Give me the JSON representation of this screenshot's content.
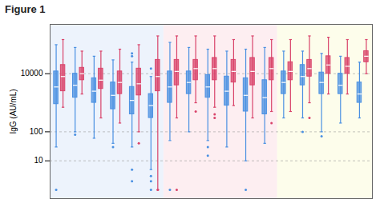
{
  "chart_data": {
    "type": "box",
    "title": "Figure 1",
    "y_label": "IgG (AU/mL)",
    "log": "y",
    "grid": true,
    "tick_labels": "y",
    "categories": [
      null,
      null,
      null,
      null,
      null,
      null,
      null,
      null,
      null,
      null,
      null,
      null,
      null,
      null,
      null,
      null,
      null
    ],
    "ylim": [
      0.5,
      500000
    ],
    "yticks": [
      10,
      100,
      10000
    ],
    "bands": [
      {
        "from": 0,
        "to": 5,
        "color": "#edf3fc"
      },
      {
        "from": 6,
        "to": 11,
        "color": "#fdeef1"
      },
      {
        "from": 12,
        "to": 16,
        "color": "#fdfdeb"
      }
    ],
    "series": [
      {
        "color": "#4a90e2",
        "values": [
          {
            "min": 30,
            "q1": 900,
            "median": 3500,
            "q3": 12000,
            "max": 100000,
            "outliers": [
              1
            ]
          },
          {
            "min": 100,
            "q1": 1500,
            "median": 4000,
            "q3": 10000,
            "max": 80000,
            "outliers": [
              80
            ]
          },
          {
            "min": 60,
            "q1": 1000,
            "median": 2500,
            "q3": 7000,
            "max": 40000,
            "outliers": []
          },
          {
            "min": 40,
            "q1": 600,
            "median": 1800,
            "q3": 5000,
            "max": 30000,
            "outliers": [
              30
            ]
          },
          {
            "min": 30,
            "q1": 400,
            "median": 1200,
            "q3": 3500,
            "max": 25000,
            "outliers": [
              2,
              5,
              40000,
              50000
            ]
          },
          {
            "min": 5,
            "q1": 300,
            "median": 800,
            "q3": 2000,
            "max": 8000,
            "outliers": [
              1,
              2,
              3,
              15000
            ]
          },
          {
            "min": 50,
            "q1": 1000,
            "median": 3500,
            "q3": 12000,
            "max": 120000,
            "outliers": [
              1
            ]
          },
          {
            "min": 100,
            "q1": 2000,
            "median": 5000,
            "q3": 12000,
            "max": 80000,
            "outliers": []
          },
          {
            "min": 50,
            "q1": 1500,
            "median": 3500,
            "q3": 9000,
            "max": 70000,
            "outliers": [
              15,
              30
            ]
          },
          {
            "min": 30,
            "q1": 800,
            "median": 2500,
            "q3": 8000,
            "max": 60000,
            "outliers": []
          },
          {
            "min": 10,
            "q1": 500,
            "median": 1800,
            "q3": 7000,
            "max": 70000,
            "outliers": [
              1
            ]
          },
          {
            "min": 40,
            "q1": 400,
            "median": 1500,
            "q3": 6000,
            "max": 80000,
            "outliers": []
          },
          {
            "min": 300,
            "q1": 2000,
            "median": 5000,
            "q3": 12000,
            "max": 60000,
            "outliers": []
          },
          {
            "min": 300,
            "q1": 4000,
            "median": 8000,
            "q3": 20000,
            "max": 60000,
            "outliers": [
              100
            ]
          },
          {
            "min": 100,
            "q1": 2000,
            "median": 5000,
            "q3": 11000,
            "max": 50000,
            "outliers": [
              70
            ]
          },
          {
            "min": 200,
            "q1": 2000,
            "median": 4000,
            "q3": 10000,
            "max": 40000,
            "outliers": []
          },
          {
            "min": 300,
            "q1": 1000,
            "median": 2000,
            "q3": 5000,
            "max": 25000,
            "outliers": []
          }
        ]
      },
      {
        "color": "#d9436a",
        "values": [
          {
            "min": 700,
            "q1": 2500,
            "median": 8000,
            "q3": 20000,
            "max": 150000,
            "outliers": []
          },
          {
            "min": 2000,
            "q1": 6000,
            "median": 10000,
            "q3": 16000,
            "max": 60000,
            "outliers": []
          },
          {
            "min": 300,
            "q1": 3000,
            "median": 6000,
            "q3": 15000,
            "max": 60000,
            "outliers": []
          },
          {
            "min": 200,
            "q1": 2000,
            "median": 5000,
            "q3": 12000,
            "max": 70000,
            "outliers": []
          },
          {
            "min": 100,
            "q1": 1800,
            "median": 4500,
            "q3": 15000,
            "max": 100000,
            "outliers": [
              40
            ]
          },
          {
            "min": 1,
            "q1": 2500,
            "median": 8000,
            "q3": 30000,
            "max": 200000,
            "outliers": [
              1
            ]
          },
          {
            "min": 300,
            "q1": 4000,
            "median": 12000,
            "q3": 30000,
            "max": 200000,
            "outliers": [
              1
            ]
          },
          {
            "min": 1000,
            "q1": 6000,
            "median": 15000,
            "q3": 30000,
            "max": 200000,
            "outliers": [
              500
            ]
          },
          {
            "min": 700,
            "q1": 6000,
            "median": 15000,
            "q3": 35000,
            "max": 200000,
            "outliers": [
              300,
              400
            ]
          },
          {
            "min": 800,
            "q1": 5000,
            "median": 12000,
            "q3": 30000,
            "max": 150000,
            "outliers": []
          },
          {
            "min": 300,
            "q1": 4000,
            "median": 12000,
            "q3": 35000,
            "max": 200000,
            "outliers": []
          },
          {
            "min": 500,
            "q1": 6000,
            "median": 15000,
            "q3": 35000,
            "max": 150000,
            "outliers": [
              200
            ]
          },
          {
            "min": 500,
            "q1": 6000,
            "median": 12000,
            "q3": 25000,
            "max": 150000,
            "outliers": []
          },
          {
            "min": 1000,
            "q1": 8000,
            "median": 15000,
            "q3": 30000,
            "max": 200000,
            "outliers": [
              300
            ]
          },
          {
            "min": 2000,
            "q1": 10000,
            "median": 20000,
            "q3": 40000,
            "max": 180000,
            "outliers": []
          },
          {
            "min": 2000,
            "q1": 10000,
            "median": 18000,
            "q3": 35000,
            "max": 150000,
            "outliers": []
          },
          {
            "min": 10000,
            "q1": 25000,
            "median": 40000,
            "q3": 60000,
            "max": 150000,
            "outliers": []
          }
        ]
      }
    ]
  }
}
